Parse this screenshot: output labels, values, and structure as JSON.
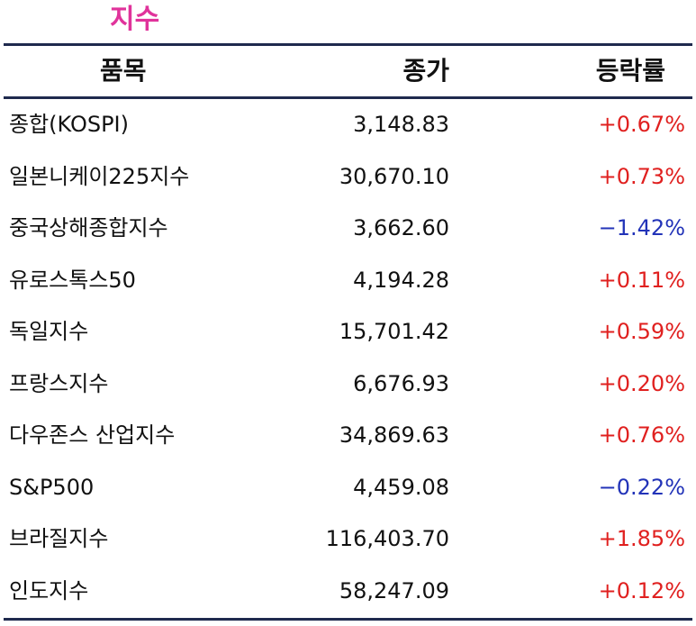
{
  "title": "지수",
  "columns": {
    "name": "품목",
    "close": "종가",
    "change": "등락률"
  },
  "colors": {
    "title": "#e0339b",
    "rule": "#1f2a4e",
    "up": "#e0201f",
    "down": "#2233b8"
  },
  "rows": [
    {
      "name": "종합(KOSPI)",
      "close": "3,148.83",
      "change": "+0.67%",
      "direction": "up"
    },
    {
      "name": "일본니케이225지수",
      "close": "30,670.10",
      "change": "+0.73%",
      "direction": "up"
    },
    {
      "name": "중국상해종합지수",
      "close": "3,662.60",
      "change": "−1.42%",
      "direction": "down"
    },
    {
      "name": "유로스톡스50",
      "close": "4,194.28",
      "change": "+0.11%",
      "direction": "up"
    },
    {
      "name": "독일지수",
      "close": "15,701.42",
      "change": "+0.59%",
      "direction": "up"
    },
    {
      "name": "프랑스지수",
      "close": "6,676.93",
      "change": "+0.20%",
      "direction": "up"
    },
    {
      "name": "다우존스 산업지수",
      "close": "34,869.63",
      "change": "+0.76%",
      "direction": "up"
    },
    {
      "name": "S&P500",
      "close": "4,459.08",
      "change": "−0.22%",
      "direction": "down"
    },
    {
      "name": "브라질지수",
      "close": "116,403.70",
      "change": "+1.85%",
      "direction": "up"
    },
    {
      "name": "인도지수",
      "close": "58,247.09",
      "change": "+0.12%",
      "direction": "up"
    }
  ]
}
